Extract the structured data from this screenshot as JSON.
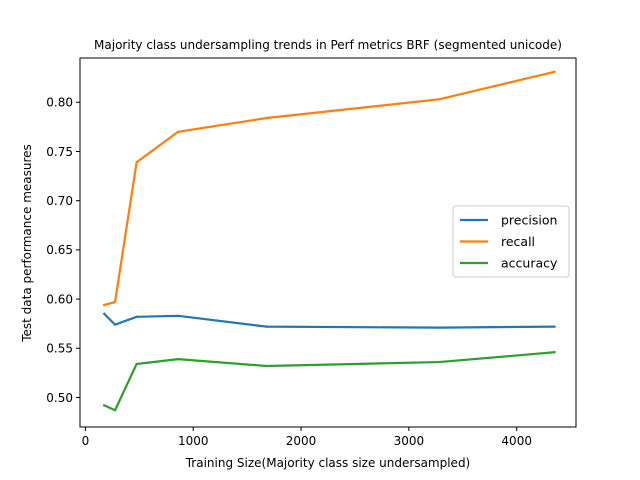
{
  "chart_data": {
    "type": "line",
    "title": "Majority class undersampling trends in Perf metrics BRF (segmented unicode)",
    "xlabel": "Training Size(Majority class size undersampled)",
    "ylabel": "Test data performance measures",
    "xlim": [
      -50,
      4550
    ],
    "ylim": [
      0.47,
      0.845
    ],
    "xticks": [
      0,
      1000,
      2000,
      3000,
      4000
    ],
    "xtick_labels": [
      "0",
      "1000",
      "2000",
      "3000",
      "4000"
    ],
    "yticks": [
      0.5,
      0.55,
      0.6,
      0.65,
      0.7,
      0.75,
      0.8
    ],
    "ytick_labels": [
      "0.50",
      "0.55",
      "0.60",
      "0.65",
      "0.70",
      "0.75",
      "0.80"
    ],
    "grid": false,
    "legend_position": "center-right",
    "x": [
      175,
      275,
      475,
      860,
      1680,
      3280,
      4350
    ],
    "series": [
      {
        "name": "precision",
        "color": "#1f77b4",
        "values": [
          0.585,
          0.574,
          0.582,
          0.583,
          0.572,
          0.571,
          0.572
        ]
      },
      {
        "name": "recall",
        "color": "#ff7f0e",
        "values": [
          0.594,
          0.597,
          0.739,
          0.77,
          0.784,
          0.803,
          0.831
        ]
      },
      {
        "name": "accuracy",
        "color": "#2ca02c",
        "values": [
          0.492,
          0.487,
          0.534,
          0.539,
          0.532,
          0.536,
          0.546
        ]
      }
    ]
  }
}
